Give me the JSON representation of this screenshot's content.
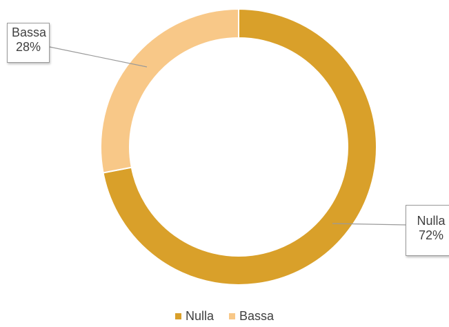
{
  "chart_data": {
    "type": "pie",
    "variant": "doughnut",
    "categories": [
      "Nulla",
      "Bassa"
    ],
    "values": [
      72,
      28
    ],
    "value_labels": [
      "72%",
      "28%"
    ],
    "colors": [
      "#D9A02A",
      "#F8C888"
    ],
    "title": "",
    "legend": {
      "placement": "bottom",
      "entries": [
        "Nulla",
        "Bassa"
      ]
    }
  }
}
